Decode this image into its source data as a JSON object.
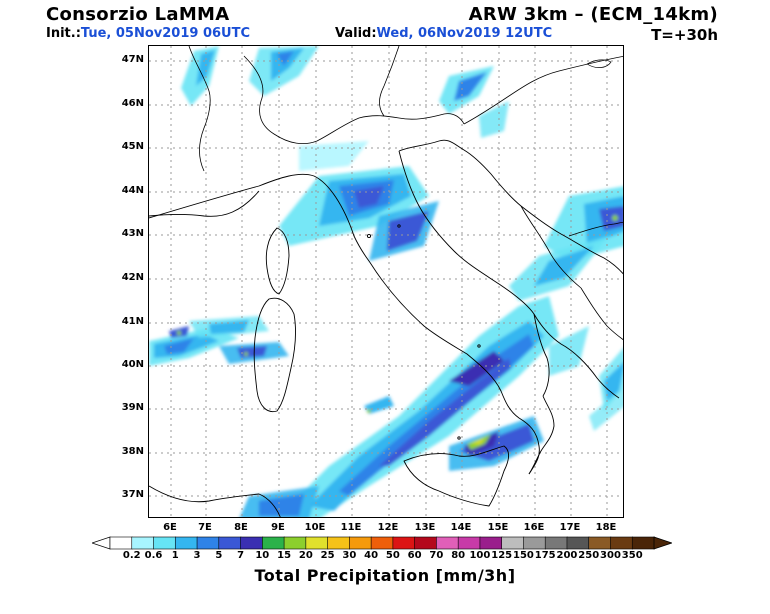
{
  "header": {
    "source": "Consorzio LaMMA",
    "model": "ARW 3km – (ECM_14km)",
    "init_label": "Init.:",
    "init_value": "Tue, 05Nov2019 06UTC",
    "valid_label": "Valid:",
    "valid_value": "Wed, 06Nov2019 12UTC",
    "lead_time": "T=+30h"
  },
  "map": {
    "lat_labels": [
      "47N",
      "46N",
      "45N",
      "44N",
      "43N",
      "42N",
      "41N",
      "40N",
      "39N",
      "38N",
      "37N"
    ],
    "lon_labels": [
      "6E",
      "7E",
      "8E",
      "9E",
      "10E",
      "11E",
      "12E",
      "13E",
      "14E",
      "15E",
      "16E",
      "17E",
      "18E"
    ],
    "gridlines": "dotted"
  },
  "colorbar": {
    "title": "Total Precipitation [mm/3h]",
    "levels": [
      "0.2",
      "0.6",
      "1",
      "3",
      "5",
      "7",
      "10",
      "15",
      "20",
      "25",
      "30",
      "40",
      "50",
      "60",
      "70",
      "80",
      "100",
      "125",
      "150",
      "175",
      "200",
      "250",
      "300",
      "350"
    ],
    "colors": [
      "#ffffff",
      "#a8f5ff",
      "#66e4f5",
      "#34b6f0",
      "#2f83e8",
      "#3a58d6",
      "#3a2fb2",
      "#2bb24a",
      "#8ccf2d",
      "#e0e02c",
      "#f5c218",
      "#f59a0c",
      "#ef5f0a",
      "#dc1414",
      "#b4081c",
      "#e05fb8",
      "#c83aa8",
      "#9a1e8c",
      "#bdbdbd",
      "#9a9a9a",
      "#787878",
      "#565656",
      "#8a5a26",
      "#6a3b12",
      "#4a2508"
    ]
  }
}
